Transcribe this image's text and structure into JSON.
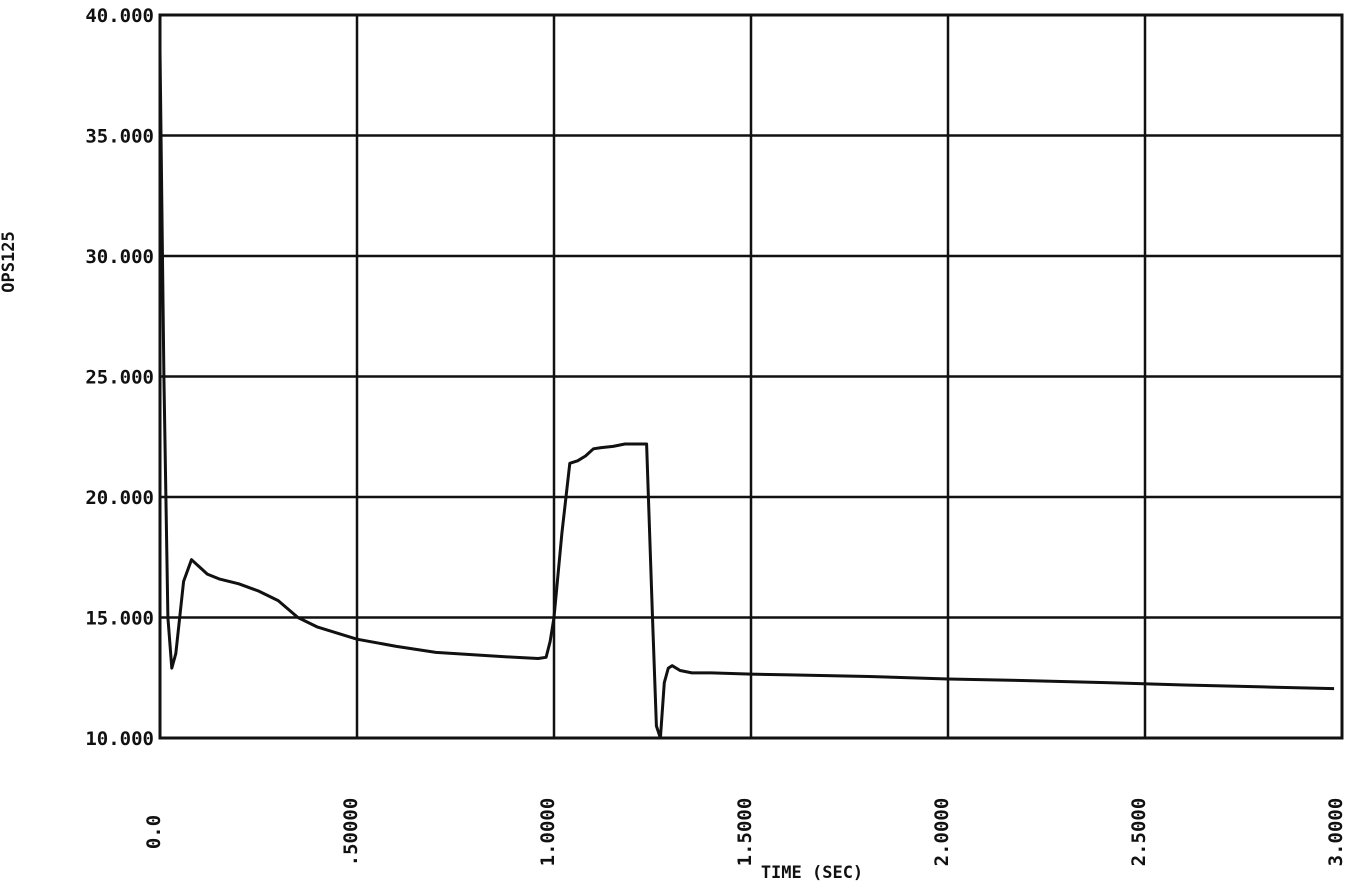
{
  "chart_data": {
    "type": "line",
    "title": "",
    "xlabel": "TIME (SEC)",
    "ylabel": "OPS125",
    "xlim": [
      0.0,
      3.0
    ],
    "ylim": [
      10.0,
      40.0
    ],
    "xticks": [
      0.0,
      0.5,
      1.0,
      1.5,
      2.0,
      2.5,
      3.0
    ],
    "xtick_labels": [
      "0.0",
      ".50000",
      "1.0000",
      "1.5000",
      "2.0000",
      "2.5000",
      "3.0000"
    ],
    "yticks": [
      10,
      15,
      20,
      25,
      30,
      35,
      40
    ],
    "ytick_labels": [
      "10.000",
      "15.000",
      "20.000",
      "25.000",
      "30.000",
      "35.000",
      "40.000"
    ],
    "grid": true,
    "line_color": "#111111",
    "series": [
      {
        "name": "",
        "x": [
          0.0,
          0.01,
          0.02,
          0.03,
          0.04,
          0.06,
          0.08,
          0.1,
          0.12,
          0.15,
          0.2,
          0.25,
          0.3,
          0.35,
          0.4,
          0.5,
          0.6,
          0.7,
          0.8,
          0.9,
          0.96,
          0.98,
          0.99,
          1.0,
          1.02,
          1.04,
          1.06,
          1.08,
          1.1,
          1.12,
          1.15,
          1.18,
          1.2,
          1.22,
          1.235,
          1.25,
          1.26,
          1.27,
          1.28,
          1.29,
          1.3,
          1.32,
          1.35,
          1.4,
          1.5,
          1.6,
          1.8,
          2.0,
          2.2,
          2.4,
          2.6,
          2.8,
          2.98
        ],
        "y": [
          38.5,
          25.0,
          15.0,
          12.9,
          13.5,
          16.5,
          17.4,
          17.1,
          16.8,
          16.6,
          16.4,
          16.1,
          15.7,
          15.0,
          14.6,
          14.1,
          13.8,
          13.55,
          13.45,
          13.35,
          13.3,
          13.35,
          14.0,
          15.0,
          18.5,
          21.4,
          21.5,
          21.7,
          22.0,
          22.05,
          22.1,
          22.2,
          22.2,
          22.2,
          22.2,
          15.0,
          10.5,
          10.0,
          12.3,
          12.9,
          13.0,
          12.8,
          12.7,
          12.7,
          12.65,
          12.62,
          12.55,
          12.45,
          12.38,
          12.3,
          12.2,
          12.12,
          12.05
        ]
      }
    ]
  }
}
